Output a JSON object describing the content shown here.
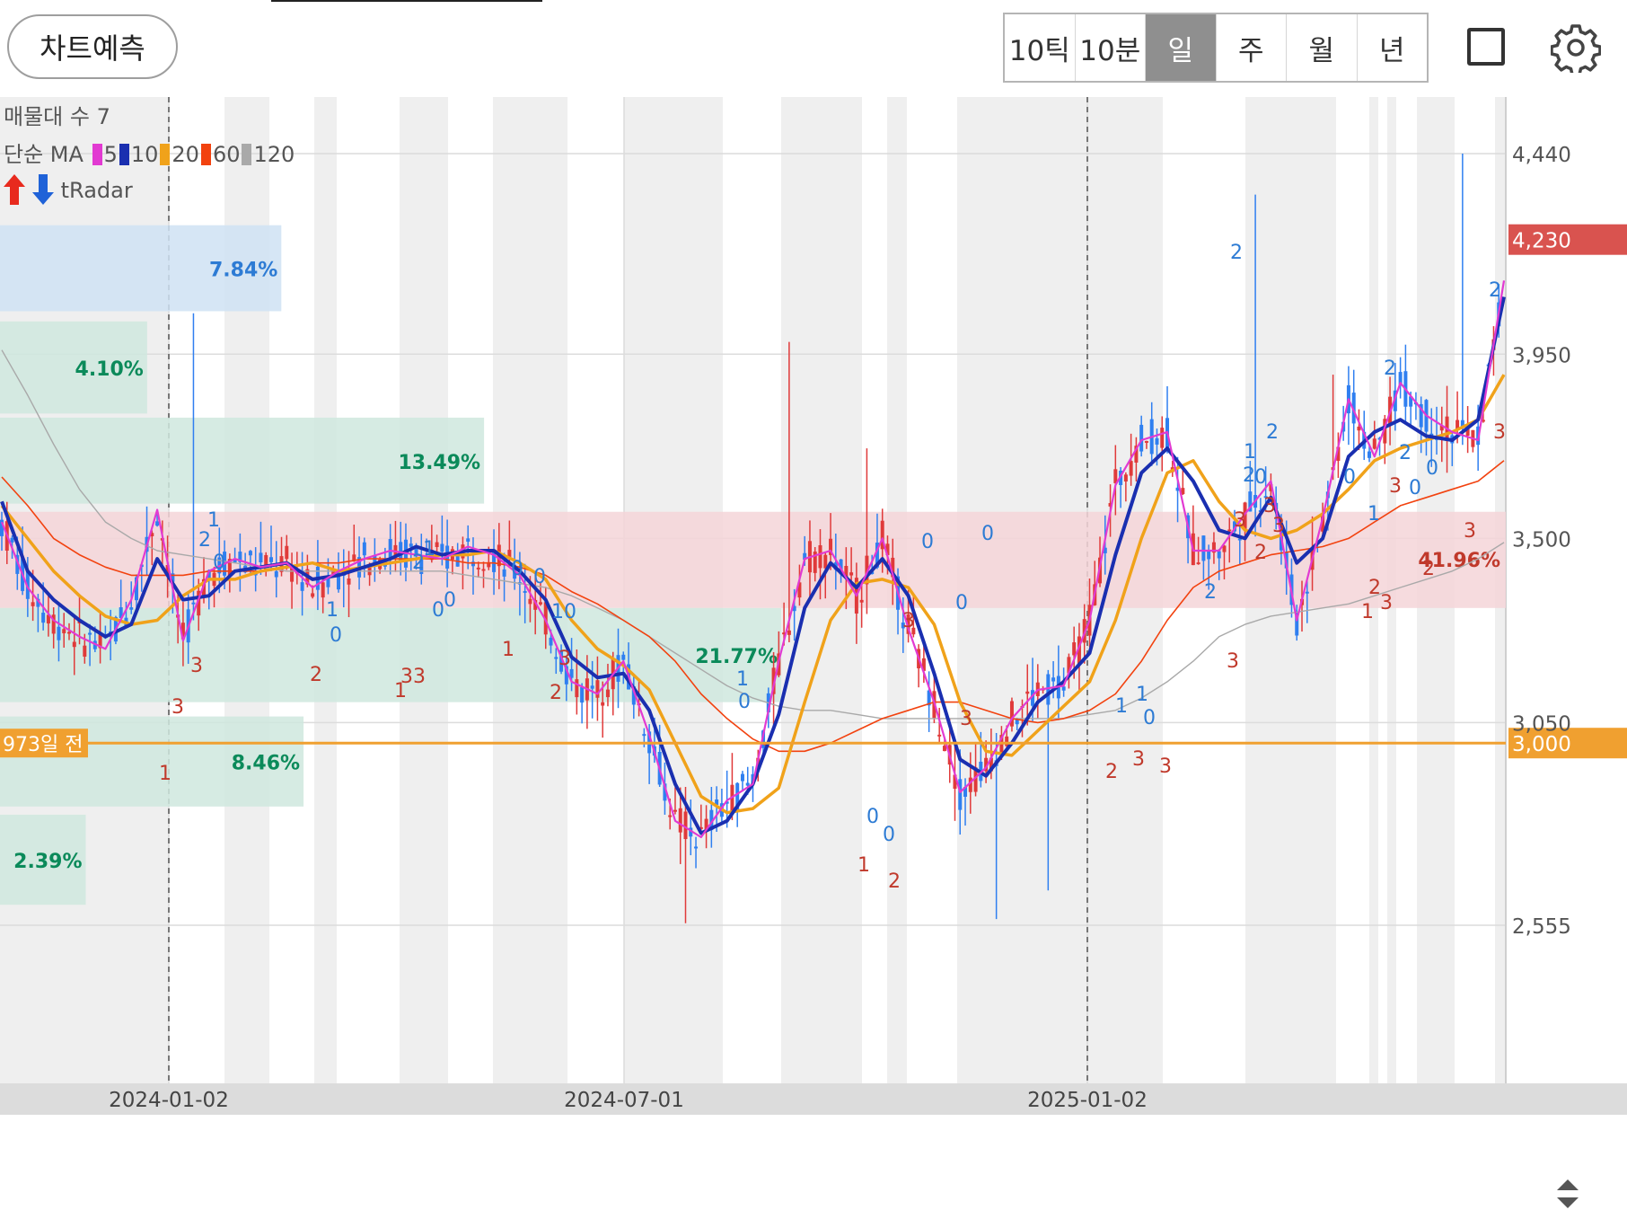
{
  "toolbar": {
    "predict_label": "차트예측",
    "periods": [
      "10틱",
      "10분",
      "일",
      "주",
      "월",
      "년"
    ],
    "active_period": "일",
    "square_icon": "square-icon",
    "settings_icon": "gear-icon"
  },
  "legend": {
    "volume_profile": "매물대 수 7",
    "ma_label": "단순 MA",
    "ma_periods": [
      {
        "label": "5",
        "color": "#e23ad2"
      },
      {
        "label": "10",
        "color": "#1a2fb0"
      },
      {
        "label": "20",
        "color": "#f0a21a"
      },
      {
        "label": "60",
        "color": "#f2420f"
      },
      {
        "label": "120",
        "color": "#a9a9a9"
      }
    ],
    "radar_label": "tRadar"
  },
  "colors": {
    "up": "#e03a3a",
    "down": "#2f7ff0",
    "current_price": "#d9534f",
    "reference": "#f0a030",
    "profile_green": "#cfe8de",
    "profile_blue": "#cfe2f3",
    "band_pink": "#f5d5d8",
    "shade": "#efefef"
  },
  "chart_data": {
    "type": "candlestick",
    "y_ticks": [
      "4,440",
      "3,950",
      "3,500",
      "3,050",
      "2,555"
    ],
    "x_ticks": [
      "2024-01-02",
      "2024-07-01",
      "2025-01-02"
    ],
    "ylim": [
      2555,
      4440
    ],
    "current_price": {
      "label": "4,230",
      "value": 4230
    },
    "reference_price": {
      "label": "3,000",
      "value": 3000,
      "tag": "973일 전"
    },
    "price_band": {
      "from": 3330,
      "to": 3565,
      "label": "41.96%"
    },
    "volume_profile": [
      {
        "label": "7.84%",
        "share": 7.84,
        "highlight": true
      },
      {
        "label": "4.10%",
        "share": 4.1
      },
      {
        "label": "13.49%",
        "share": 13.49
      },
      {
        "label": "21.77%",
        "share": 21.77
      },
      {
        "label": "8.46%",
        "share": 8.46
      },
      {
        "label": "2.39%",
        "share": 2.39
      }
    ],
    "series": [
      {
        "name": "5",
        "values": [
          3540,
          3380,
          3300,
          3260,
          3230,
          3350,
          3570,
          3250,
          3420,
          3450,
          3430,
          3440,
          3380,
          3420,
          3450,
          3470,
          3460,
          3450,
          3480,
          3460,
          3410,
          3300,
          3150,
          3120,
          3200,
          3020,
          2810,
          2770,
          2860,
          2900,
          3200,
          3450,
          3470,
          3360,
          3500,
          3280,
          3100,
          2880,
          2940,
          3060,
          3130,
          3140,
          3300,
          3630,
          3740,
          3760,
          3470,
          3470,
          3560,
          3640,
          3300,
          3550,
          3840,
          3700,
          3880,
          3800,
          3760,
          3740,
          4130
        ]
      },
      {
        "name": "10",
        "values": [
          3590,
          3420,
          3350,
          3300,
          3260,
          3290,
          3450,
          3350,
          3360,
          3420,
          3430,
          3440,
          3400,
          3410,
          3430,
          3450,
          3480,
          3460,
          3470,
          3470,
          3420,
          3350,
          3210,
          3160,
          3170,
          3080,
          2900,
          2780,
          2810,
          2900,
          3070,
          3330,
          3440,
          3380,
          3450,
          3360,
          3170,
          2960,
          2920,
          3000,
          3100,
          3150,
          3220,
          3460,
          3660,
          3720,
          3640,
          3520,
          3500,
          3600,
          3440,
          3500,
          3700,
          3760,
          3790,
          3750,
          3740,
          3790,
          4090
        ]
      },
      {
        "name": "20",
        "values": [
          3580,
          3500,
          3420,
          3360,
          3310,
          3290,
          3300,
          3360,
          3400,
          3400,
          3420,
          3430,
          3440,
          3420,
          3430,
          3440,
          3450,
          3460,
          3460,
          3470,
          3440,
          3400,
          3300,
          3230,
          3190,
          3130,
          3000,
          2870,
          2830,
          2840,
          2890,
          3100,
          3300,
          3390,
          3400,
          3380,
          3290,
          3100,
          2980,
          2970,
          3030,
          3090,
          3150,
          3300,
          3500,
          3660,
          3690,
          3590,
          3520,
          3500,
          3520,
          3560,
          3620,
          3690,
          3720,
          3740,
          3760,
          3790,
          3900
        ]
      },
      {
        "name": "60",
        "values": [
          3650,
          3580,
          3500,
          3460,
          3430,
          3410,
          3410,
          3410,
          3420,
          3420,
          3420,
          3430,
          3440,
          3440,
          3450,
          3450,
          3450,
          3450,
          3440,
          3440,
          3430,
          3410,
          3370,
          3340,
          3300,
          3260,
          3200,
          3120,
          3060,
          3010,
          2980,
          2980,
          3000,
          3030,
          3060,
          3080,
          3100,
          3100,
          3080,
          3060,
          3050,
          3060,
          3080,
          3120,
          3200,
          3300,
          3380,
          3420,
          3440,
          3460,
          3470,
          3480,
          3500,
          3540,
          3580,
          3600,
          3620,
          3640,
          3690
        ]
      },
      {
        "name": "120",
        "values": [
          3960,
          3850,
          3730,
          3620,
          3540,
          3500,
          3470,
          3460,
          3450,
          3440,
          3430,
          3420,
          3420,
          3420,
          3420,
          3420,
          3420,
          3420,
          3410,
          3400,
          3390,
          3380,
          3360,
          3330,
          3300,
          3260,
          3220,
          3180,
          3140,
          3110,
          3090,
          3080,
          3080,
          3070,
          3060,
          3060,
          3060,
          3060,
          3060,
          3060,
          3060,
          3060,
          3070,
          3080,
          3110,
          3150,
          3200,
          3260,
          3290,
          3310,
          3320,
          3330,
          3340,
          3360,
          3380,
          3400,
          3420,
          3450,
          3490
        ]
      }
    ]
  }
}
